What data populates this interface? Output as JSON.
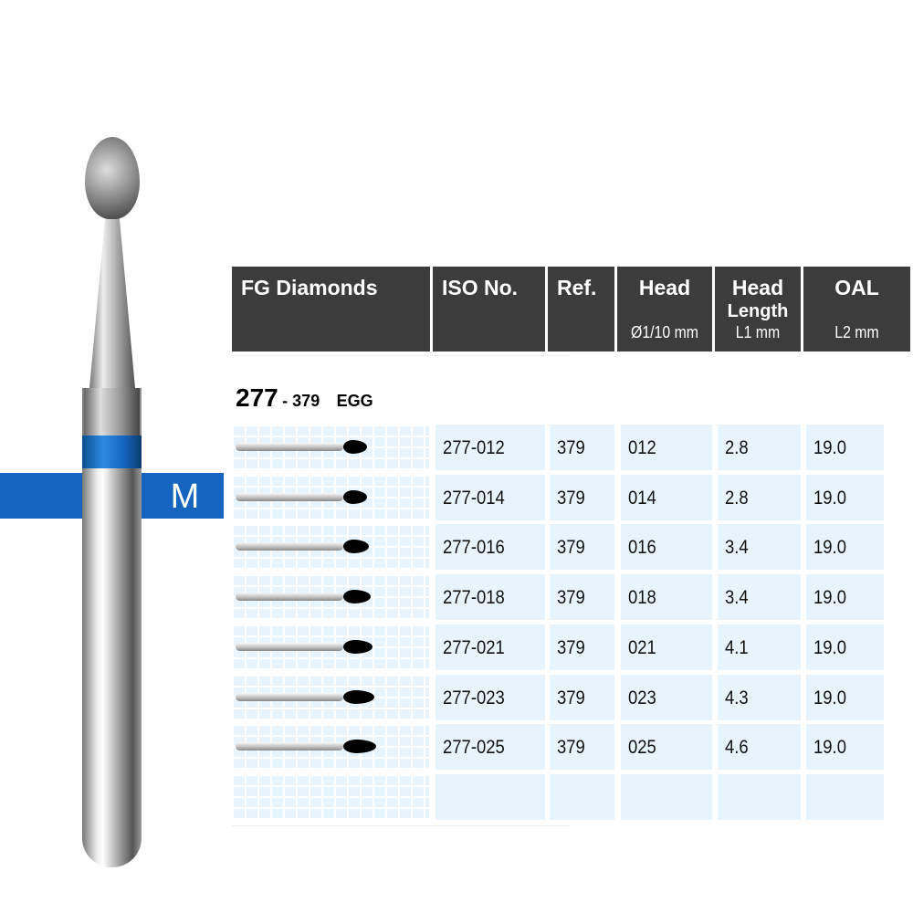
{
  "header": {
    "columns": [
      {
        "title": "FG Diamonds",
        "sub": ""
      },
      {
        "title": "ISO No.",
        "sub": ""
      },
      {
        "title": "Ref.",
        "sub": ""
      },
      {
        "title": "Head",
        "sub": "Ø1/10 mm"
      },
      {
        "title": "Head",
        "title2": "Length",
        "sub": "L1 mm"
      },
      {
        "title": "OAL",
        "sub": "L2 mm"
      }
    ]
  },
  "product": {
    "number": "277",
    "ref": "- 379",
    "shape": "EGG"
  },
  "grit": {
    "label": "M",
    "color": "#1565c0"
  },
  "rows": [
    {
      "iso": "277-012",
      "ref": "379",
      "head": "012",
      "length": "2.8",
      "oal": "19.0"
    },
    {
      "iso": "277-014",
      "ref": "379",
      "head": "014",
      "length": "2.8",
      "oal": "19.0"
    },
    {
      "iso": "277-016",
      "ref": "379",
      "head": "016",
      "length": "3.4",
      "oal": "19.0"
    },
    {
      "iso": "277-018",
      "ref": "379",
      "head": "018",
      "length": "3.4",
      "oal": "19.0"
    },
    {
      "iso": "277-021",
      "ref": "379",
      "head": "021",
      "length": "4.1",
      "oal": "19.0"
    },
    {
      "iso": "277-023",
      "ref": "379",
      "head": "023",
      "length": "4.3",
      "oal": "19.0"
    },
    {
      "iso": "277-025",
      "ref": "379",
      "head": "025",
      "length": "4.6",
      "oal": "19.0"
    }
  ]
}
